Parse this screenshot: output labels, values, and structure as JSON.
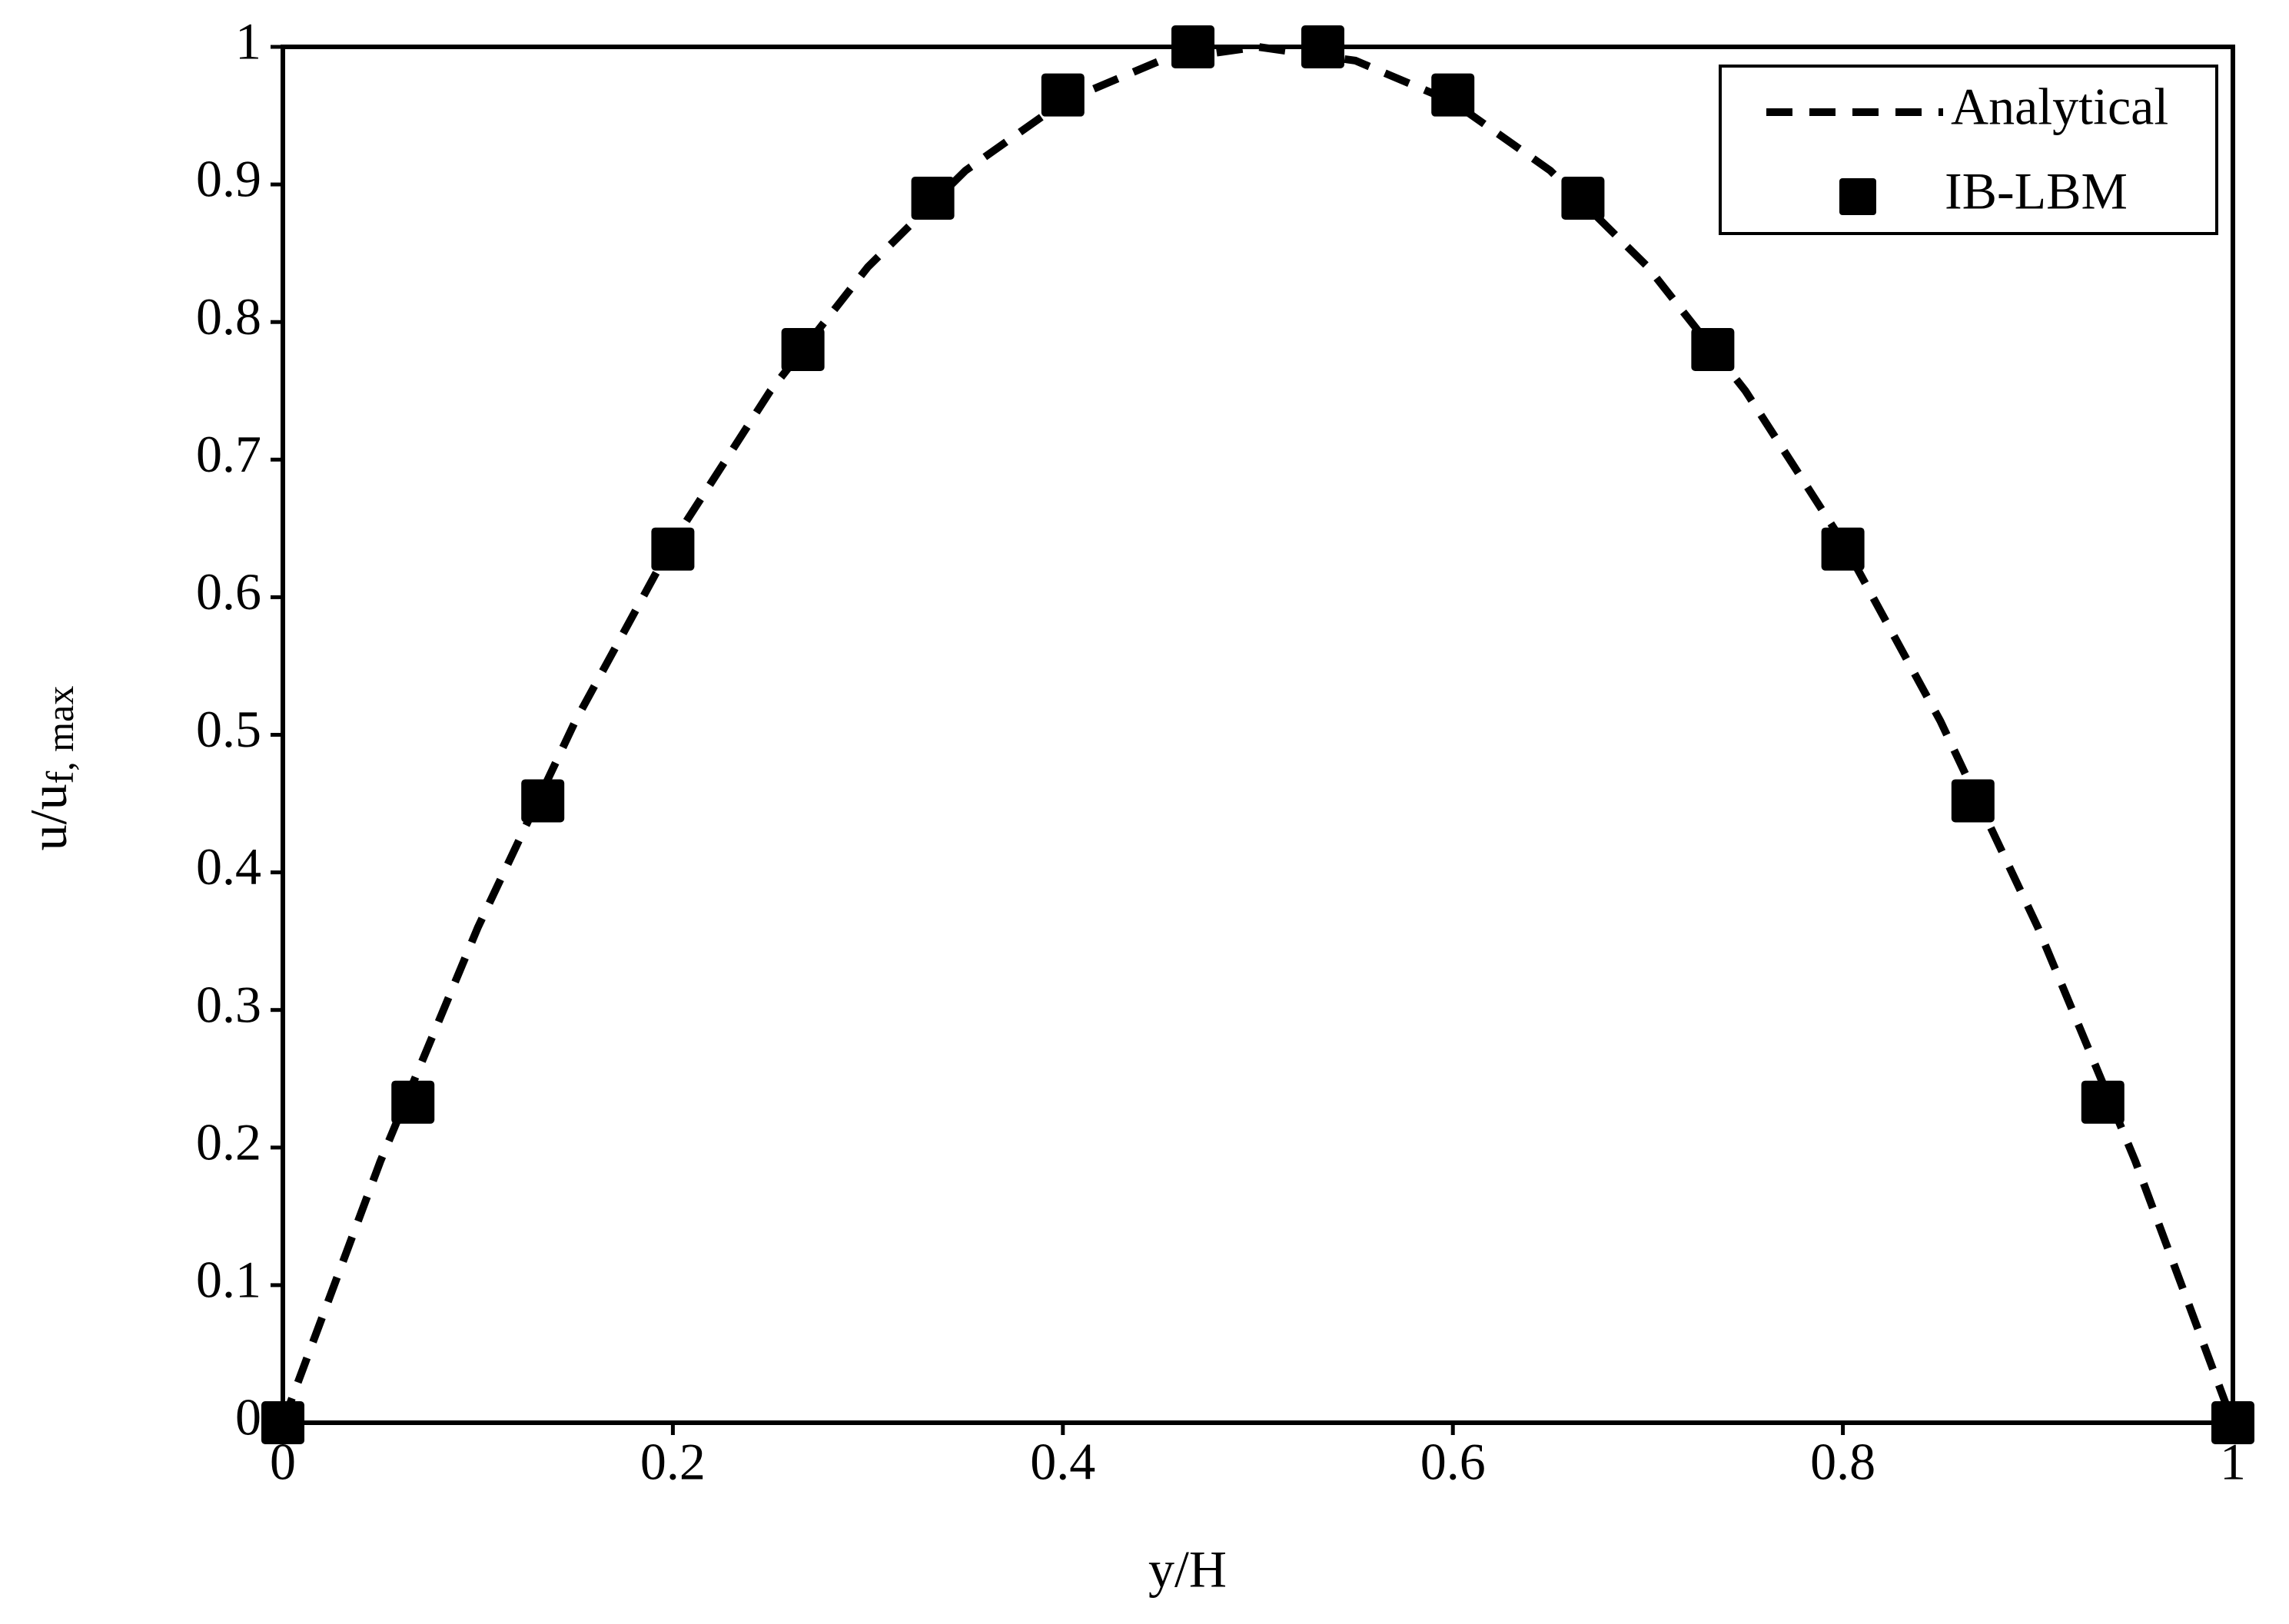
{
  "chart_data": {
    "type": "line",
    "xlabel": "y/H",
    "ylabel": "u/u",
    "ylabel_subscript": "f, max",
    "xlim": [
      0,
      1
    ],
    "ylim": [
      0,
      1
    ],
    "xticks": [
      0,
      0.2,
      0.4,
      0.6,
      0.8,
      1
    ],
    "yticks": [
      0,
      0.1,
      0.2,
      0.3,
      0.4,
      0.5,
      0.6,
      0.7,
      0.8,
      0.9,
      1
    ],
    "grid": false,
    "legend": "upper right",
    "series": [
      {
        "name": "Analytical",
        "type": "line",
        "style": "dashed",
        "color": "#000000",
        "x": [
          0,
          0.05,
          0.1,
          0.15,
          0.2,
          0.25,
          0.3,
          0.35,
          0.4,
          0.45,
          0.5,
          0.55,
          0.6,
          0.65,
          0.7,
          0.75,
          0.8,
          0.85,
          0.9,
          0.95,
          1
        ],
        "values": [
          0,
          0.19,
          0.36,
          0.51,
          0.64,
          0.75,
          0.84,
          0.91,
          0.96,
          0.99,
          1,
          0.99,
          0.96,
          0.91,
          0.84,
          0.75,
          0.64,
          0.51,
          0.36,
          0.19,
          0
        ]
      },
      {
        "name": "IB-LBM",
        "type": "scatter",
        "marker": "square",
        "color": "#000000",
        "x": [
          0,
          0.0667,
          0.1333,
          0.2,
          0.2667,
          0.3333,
          0.4,
          0.4667,
          0.5333,
          0.6,
          0.6667,
          0.7333,
          0.8,
          0.8667,
          0.9333,
          1
        ],
        "values": [
          0,
          0.233,
          0.452,
          0.635,
          0.78,
          0.89,
          0.965,
          1,
          1,
          0.965,
          0.89,
          0.78,
          0.635,
          0.452,
          0.233,
          0
        ]
      }
    ]
  }
}
